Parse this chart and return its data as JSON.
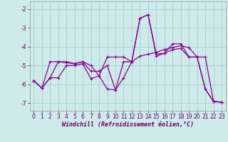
{
  "xlabel": "Windchill (Refroidissement éolien,°C)",
  "bg_color": "#ceeaea",
  "grid_color": "#aad4d4",
  "line_color": "#8b008b",
  "xlim": [
    -0.5,
    23.5
  ],
  "ylim": [
    -7.4,
    -1.6
  ],
  "yticks": [
    -7,
    -6,
    -5,
    -4,
    -3,
    -2
  ],
  "xticks": [
    0,
    1,
    2,
    3,
    4,
    5,
    6,
    7,
    8,
    9,
    10,
    11,
    12,
    13,
    14,
    15,
    16,
    17,
    18,
    19,
    20,
    21,
    22,
    23
  ],
  "series1_x": [
    0,
    1,
    2,
    3,
    4,
    5,
    6,
    7,
    8,
    9,
    10,
    11,
    12,
    13,
    14,
    15,
    16,
    17,
    18,
    19,
    20,
    21,
    22,
    23
  ],
  "series1_y": [
    -5.8,
    -6.2,
    -4.8,
    -4.8,
    -4.8,
    -4.9,
    -4.8,
    -5.3,
    -5.3,
    -5.0,
    -6.3,
    -4.8,
    -4.8,
    -4.5,
    -4.4,
    -4.3,
    -4.15,
    -4.05,
    -3.95,
    -4.05,
    -4.55,
    -4.55,
    -6.9,
    -6.95
  ],
  "series2_x": [
    0,
    1,
    2,
    3,
    4,
    5,
    6,
    7,
    8,
    9,
    10,
    11,
    12,
    13,
    14,
    15,
    16,
    17,
    18,
    19,
    20,
    21,
    22,
    23
  ],
  "series2_y": [
    -5.8,
    -6.2,
    -5.65,
    -4.8,
    -4.85,
    -4.9,
    -4.8,
    -5.0,
    -5.55,
    -6.25,
    -6.3,
    -5.65,
    -4.8,
    -2.5,
    -2.3,
    -4.4,
    -4.35,
    -4.15,
    -4.1,
    -4.55,
    -4.55,
    -6.25,
    -6.9,
    -6.95
  ],
  "series3_x": [
    0,
    1,
    2,
    3,
    4,
    5,
    6,
    7,
    8,
    9,
    10,
    11,
    12,
    13,
    14,
    15,
    16,
    17,
    18,
    19,
    20,
    21,
    22,
    23
  ],
  "series3_y": [
    -5.8,
    -6.2,
    -5.65,
    -5.65,
    -5.0,
    -5.0,
    -4.9,
    -5.7,
    -5.55,
    -4.55,
    -4.55,
    -4.55,
    -4.8,
    -2.5,
    -2.3,
    -4.5,
    -4.35,
    -3.85,
    -3.85,
    -4.55,
    -4.55,
    -6.25,
    -6.9,
    -6.95
  ],
  "tick_fontsize": 5.5,
  "xlabel_fontsize": 6.0
}
